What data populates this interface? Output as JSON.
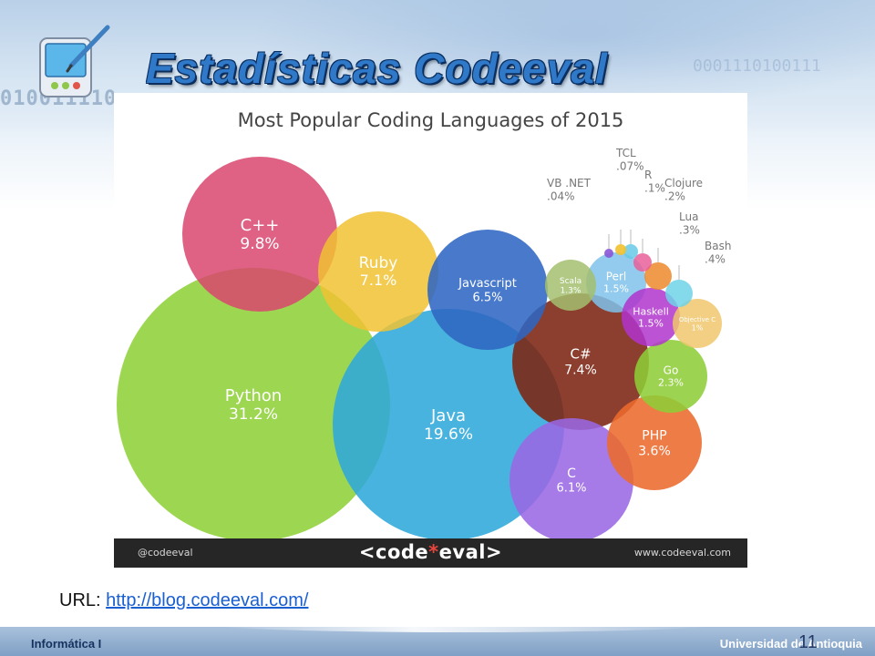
{
  "slide": {
    "title": "Estadísticas Codeeval",
    "decor_binary": "010011110",
    "decor_watermark": "0001110100111",
    "url_label": "URL: ",
    "url_link": "http://blog.codeeval.com/",
    "footer_left": "Informática I",
    "footer_right": "Universidad de Antioquia",
    "page_number": "11"
  },
  "infographic": {
    "footer_handle": "@codeeval",
    "footer_logo_left": "<code",
    "footer_logo_star": "*",
    "footer_logo_right": "eval>",
    "footer_site": "www.codeeval.com"
  },
  "colors": {
    "title_blue": "#2f79c8",
    "python": "#8fd13a",
    "java": "#30a9d8",
    "cpp": "#d9456f",
    "ruby": "#f0c132",
    "javascript": "#2f67c2",
    "csharp": "#7d2412",
    "c": "#9b6ae3",
    "php": "#ec6b2d",
    "go": "#8fcd3a"
  },
  "chart_data": {
    "type": "bubble",
    "title": "Most Popular Coding Languages of 2015",
    "unit": "%",
    "series": [
      {
        "name": "Python",
        "value": 31.2,
        "label": "31.2%",
        "color": "#8fd13a"
      },
      {
        "name": "Java",
        "value": 19.6,
        "label": "19.6%",
        "color": "#2fa9da"
      },
      {
        "name": "C++",
        "value": 9.8,
        "label": "9.8%",
        "color": "#d9466f"
      },
      {
        "name": "Ruby",
        "value": 7.1,
        "label": "7.1%",
        "color": "#f1c232"
      },
      {
        "name": "C#",
        "value": 7.4,
        "label": "7.4%",
        "color": "#7c2411"
      },
      {
        "name": "Javascript",
        "value": 6.5,
        "label": "6.5%",
        "color": "#2f66c3"
      },
      {
        "name": "C",
        "value": 6.1,
        "label": "6.1%",
        "color": "#9a68e4"
      },
      {
        "name": "PHP",
        "value": 3.6,
        "label": "3.6%",
        "color": "#ec6a2c"
      },
      {
        "name": "Go",
        "value": 2.3,
        "label": "2.3%",
        "color": "#8ecd38"
      },
      {
        "name": "Perl",
        "value": 1.5,
        "label": "1.5%",
        "color": "#7fc2ea"
      },
      {
        "name": "Haskell",
        "value": 1.5,
        "label": "1.5%",
        "color": "#b034cc"
      },
      {
        "name": "Scala",
        "value": 1.3,
        "label": "1.3%",
        "color": "#a3bf6e"
      },
      {
        "name": "Objective C",
        "value": 1,
        "label": "1%",
        "color": "#f0c76c"
      },
      {
        "name": "Bash",
        "value": 0.4,
        "label": ".4%",
        "color": "#6fd2e7"
      },
      {
        "name": "Lua",
        "value": 0.3,
        "label": ".3%",
        "color": "#ec8a2c"
      },
      {
        "name": "Clojure",
        "value": 0.2,
        "label": ".2%",
        "color": "#e8609a"
      },
      {
        "name": "R",
        "value": 0.1,
        "label": ".1%",
        "color": "#66c9e8"
      },
      {
        "name": "TCL",
        "value": 0.07,
        "label": ".07%",
        "color": "#f2c12e"
      },
      {
        "name": "VB .NET",
        "value": 0.04,
        "label": ".04%",
        "color": "#8a55d6"
      }
    ]
  }
}
